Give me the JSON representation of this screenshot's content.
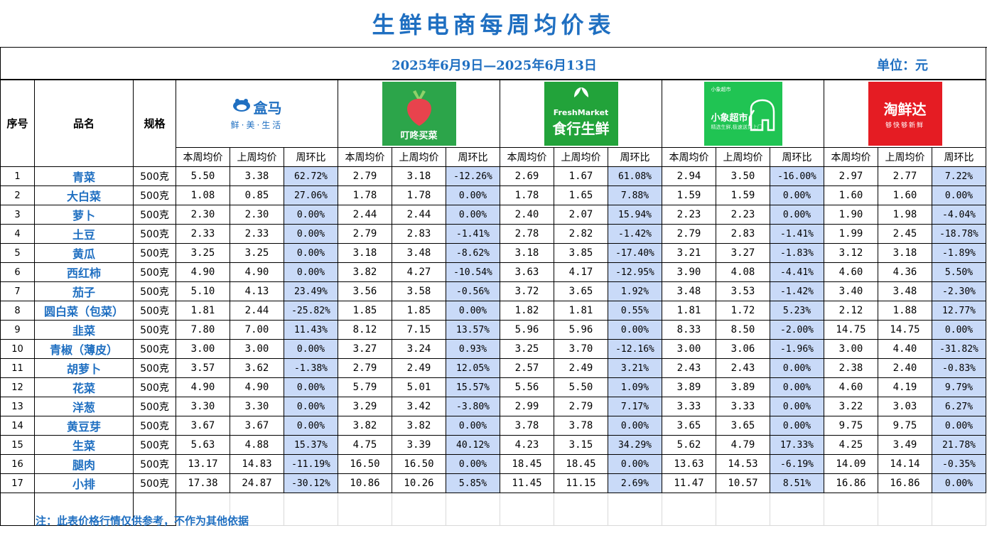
{
  "title": "生鲜电商每周均价表",
  "date_range": "2025年6月9日—2025年6月13日",
  "unit": "单位：元",
  "headers": {
    "index": "序号",
    "name": "品名",
    "spec": "规格"
  },
  "sub_headers": [
    "本周均价",
    "上周均价",
    "周环比"
  ],
  "platforms": [
    {
      "brand": "盒马",
      "tag": "鲜·美·生活"
    },
    {
      "brand": "叮咚买菜"
    },
    {
      "brand_en": "FreshMarket",
      "brand": "食行生鲜"
    },
    {
      "brand_small": "小象超市",
      "brand": "小象超市",
      "tag": "精选生鲜,极速送货上门"
    },
    {
      "brand": "淘鲜达",
      "tag": "够快够新鲜"
    }
  ],
  "rows": [
    {
      "idx": "1",
      "name": "青菜",
      "spec": "500克",
      "v": [
        "5.50",
        "3.38",
        "62.72%",
        "2.79",
        "3.18",
        "-12.26%",
        "2.69",
        "1.67",
        "61.08%",
        "2.94",
        "3.50",
        "-16.00%",
        "2.97",
        "2.77",
        "7.22%"
      ]
    },
    {
      "idx": "2",
      "name": "大白菜",
      "spec": "500克",
      "v": [
        "1.08",
        "0.85",
        "27.06%",
        "1.78",
        "1.78",
        "0.00%",
        "1.78",
        "1.65",
        "7.88%",
        "1.59",
        "1.59",
        "0.00%",
        "1.60",
        "1.60",
        "0.00%"
      ]
    },
    {
      "idx": "3",
      "name": "萝卜",
      "spec": "500克",
      "v": [
        "2.30",
        "2.30",
        "0.00%",
        "2.44",
        "2.44",
        "0.00%",
        "2.40",
        "2.07",
        "15.94%",
        "2.23",
        "2.23",
        "0.00%",
        "1.90",
        "1.98",
        "-4.04%"
      ]
    },
    {
      "idx": "4",
      "name": "土豆",
      "spec": "500克",
      "v": [
        "2.33",
        "2.33",
        "0.00%",
        "2.79",
        "2.83",
        "-1.41%",
        "2.78",
        "2.82",
        "-1.42%",
        "2.79",
        "2.83",
        "-1.41%",
        "1.99",
        "2.45",
        "-18.78%"
      ]
    },
    {
      "idx": "5",
      "name": "黄瓜",
      "spec": "500克",
      "v": [
        "3.25",
        "3.25",
        "0.00%",
        "3.18",
        "3.48",
        "-8.62%",
        "3.18",
        "3.85",
        "-17.40%",
        "3.21",
        "3.27",
        "-1.83%",
        "3.12",
        "3.18",
        "-1.89%"
      ]
    },
    {
      "idx": "6",
      "name": "西红柿",
      "spec": "500克",
      "v": [
        "4.90",
        "4.90",
        "0.00%",
        "3.82",
        "4.27",
        "-10.54%",
        "3.63",
        "4.17",
        "-12.95%",
        "3.90",
        "4.08",
        "-4.41%",
        "4.60",
        "4.36",
        "5.50%"
      ]
    },
    {
      "idx": "7",
      "name": "茄子",
      "spec": "500克",
      "v": [
        "5.10",
        "4.13",
        "23.49%",
        "3.56",
        "3.58",
        "-0.56%",
        "3.72",
        "3.65",
        "1.92%",
        "3.48",
        "3.53",
        "-1.42%",
        "3.40",
        "3.48",
        "-2.30%"
      ]
    },
    {
      "idx": "8",
      "name": "圆白菜（包菜）",
      "spec": "500克",
      "v": [
        "1.81",
        "2.44",
        "-25.82%",
        "1.85",
        "1.85",
        "0.00%",
        "1.82",
        "1.81",
        "0.55%",
        "1.81",
        "1.72",
        "5.23%",
        "2.12",
        "1.88",
        "12.77%"
      ]
    },
    {
      "idx": "9",
      "name": "韭菜",
      "spec": "500克",
      "v": [
        "7.80",
        "7.00",
        "11.43%",
        "8.12",
        "7.15",
        "13.57%",
        "5.96",
        "5.96",
        "0.00%",
        "8.33",
        "8.50",
        "-2.00%",
        "14.75",
        "14.75",
        "0.00%"
      ]
    },
    {
      "idx": "10",
      "name": "青椒（薄皮）",
      "spec": "500克",
      "v": [
        "3.00",
        "3.00",
        "0.00%",
        "3.27",
        "3.24",
        "0.93%",
        "3.25",
        "3.70",
        "-12.16%",
        "3.00",
        "3.06",
        "-1.96%",
        "3.00",
        "4.40",
        "-31.82%"
      ]
    },
    {
      "idx": "11",
      "name": "胡萝卜",
      "spec": "500克",
      "v": [
        "3.57",
        "3.62",
        "-1.38%",
        "2.79",
        "2.49",
        "12.05%",
        "2.57",
        "2.49",
        "3.21%",
        "2.43",
        "2.43",
        "0.00%",
        "2.38",
        "2.40",
        "-0.83%"
      ]
    },
    {
      "idx": "12",
      "name": "花菜",
      "spec": "500克",
      "v": [
        "4.90",
        "4.90",
        "0.00%",
        "5.79",
        "5.01",
        "15.57%",
        "5.56",
        "5.50",
        "1.09%",
        "3.89",
        "3.89",
        "0.00%",
        "4.60",
        "4.19",
        "9.79%"
      ]
    },
    {
      "idx": "13",
      "name": "洋葱",
      "spec": "500克",
      "v": [
        "3.30",
        "3.30",
        "0.00%",
        "3.29",
        "3.42",
        "-3.80%",
        "2.99",
        "2.79",
        "7.17%",
        "3.33",
        "3.33",
        "0.00%",
        "3.22",
        "3.03",
        "6.27%"
      ]
    },
    {
      "idx": "14",
      "name": "黄豆芽",
      "spec": "500克",
      "v": [
        "3.67",
        "3.67",
        "0.00%",
        "3.82",
        "3.82",
        "0.00%",
        "3.78",
        "3.78",
        "0.00%",
        "3.65",
        "3.65",
        "0.00%",
        "9.75",
        "9.75",
        "0.00%"
      ]
    },
    {
      "idx": "15",
      "name": "生菜",
      "spec": "500克",
      "v": [
        "5.63",
        "4.88",
        "15.37%",
        "4.75",
        "3.39",
        "40.12%",
        "4.23",
        "3.15",
        "34.29%",
        "5.62",
        "4.79",
        "17.33%",
        "4.25",
        "3.49",
        "21.78%"
      ]
    },
    {
      "idx": "16",
      "name": "腿肉",
      "spec": "500克",
      "v": [
        "13.17",
        "14.83",
        "-11.19%",
        "16.50",
        "16.50",
        "0.00%",
        "18.45",
        "18.45",
        "0.00%",
        "13.63",
        "14.53",
        "-6.19%",
        "14.09",
        "14.14",
        "-0.35%"
      ]
    },
    {
      "idx": "17",
      "name": "小排",
      "spec": "500克",
      "v": [
        "17.38",
        "24.87",
        "-30.12%",
        "10.86",
        "10.26",
        "5.85%",
        "11.45",
        "11.15",
        "2.69%",
        "11.47",
        "10.57",
        "8.51%",
        "16.86",
        "16.86",
        "0.00%"
      ]
    }
  ],
  "note": "注：此表价格行情仅供参考，不作为其他依据",
  "colors": {
    "accent": "#1f6fc1",
    "pct_fill": "#c9daf8"
  }
}
